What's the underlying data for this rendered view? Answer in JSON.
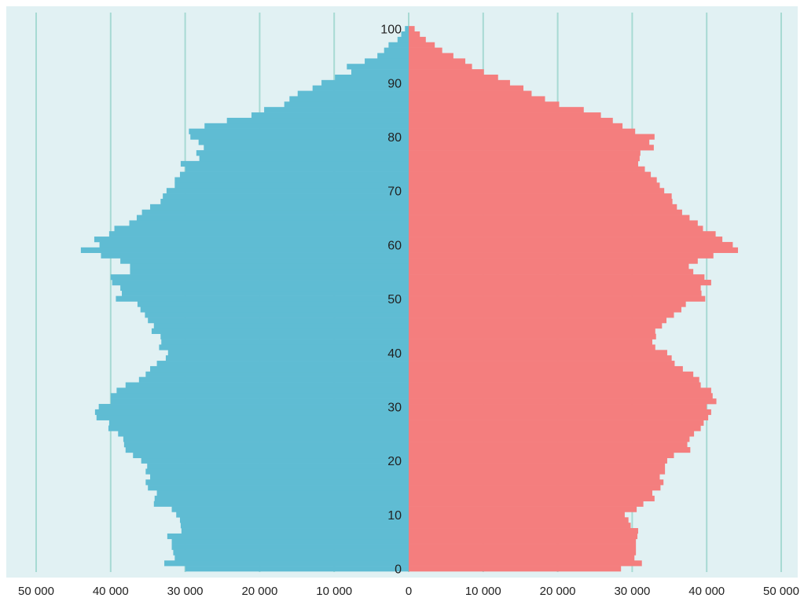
{
  "colors": {
    "plot_background": "#e1f1f3",
    "gridline": "#a7dad3",
    "male_bar": "#5fbcd3",
    "female_bar": "#f47e7e"
  },
  "chart_data": {
    "type": "bar",
    "orientation": "horizontal-population-pyramid",
    "title": "",
    "xlabel": "",
    "ylabel": "",
    "grid": true,
    "legend": "none",
    "xlim": [
      -50000,
      50000
    ],
    "ylim": [
      0,
      100
    ],
    "x_tick_values": [
      -50000,
      -40000,
      -30000,
      -20000,
      -10000,
      0,
      10000,
      20000,
      30000,
      40000,
      50000
    ],
    "x_tick_labels": [
      "50 000",
      "40 000",
      "30 000",
      "20 000",
      "10 000",
      "0",
      "10 000",
      "20 000",
      "30 000",
      "40 000",
      "50 000"
    ],
    "y_tick_values": [
      0,
      10,
      20,
      30,
      40,
      50,
      60,
      70,
      80,
      90,
      100
    ],
    "y_tick_labels": [
      "0",
      "10",
      "20",
      "30",
      "40",
      "50",
      "60",
      "70",
      "80",
      "90",
      "100"
    ],
    "categories": [
      0,
      1,
      2,
      3,
      4,
      5,
      6,
      7,
      8,
      9,
      10,
      11,
      12,
      13,
      14,
      15,
      16,
      17,
      18,
      19,
      20,
      21,
      22,
      23,
      24,
      25,
      26,
      27,
      28,
      29,
      30,
      31,
      32,
      33,
      34,
      35,
      36,
      37,
      38,
      39,
      40,
      41,
      42,
      43,
      44,
      45,
      46,
      47,
      48,
      49,
      50,
      51,
      52,
      53,
      54,
      55,
      56,
      57,
      58,
      59,
      60,
      61,
      62,
      63,
      64,
      65,
      66,
      67,
      68,
      69,
      70,
      71,
      72,
      73,
      74,
      75,
      76,
      77,
      78,
      79,
      80,
      81,
      82,
      83,
      84,
      85,
      86,
      87,
      88,
      89,
      90,
      91,
      92,
      93,
      94,
      95,
      96,
      97,
      98,
      99,
      100
    ],
    "series": [
      {
        "side": "left",
        "values": [
          30000,
          32800,
          31400,
          31600,
          31800,
          31800,
          32400,
          30500,
          30600,
          30700,
          31200,
          31800,
          34200,
          34100,
          33800,
          35000,
          35300,
          34700,
          35300,
          35100,
          35900,
          37000,
          38000,
          38200,
          38300,
          39000,
          40300,
          40200,
          41900,
          42100,
          41600,
          40000,
          40000,
          39200,
          38000,
          36200,
          35300,
          34700,
          33800,
          32600,
          32300,
          33500,
          33200,
          33300,
          34500,
          34200,
          35000,
          35400,
          36000,
          36400,
          39300,
          38500,
          38700,
          39800,
          40000,
          37400,
          37400,
          38700,
          41300,
          44000,
          41500,
          42200,
          40200,
          39500,
          37500,
          36500,
          35800,
          34700,
          33300,
          33000,
          32500,
          31400,
          31400,
          30700,
          30000,
          30600,
          28100,
          28500,
          27500,
          28200,
          29300,
          29500,
          27400,
          24400,
          21100,
          19400,
          16700,
          16000,
          14900,
          12900,
          11700,
          9900,
          7700,
          8300,
          5900,
          4200,
          3300,
          2700,
          1500,
          1000,
          500
        ]
      },
      {
        "side": "right",
        "values": [
          28500,
          31300,
          30300,
          30500,
          30500,
          30500,
          30700,
          30800,
          29800,
          29500,
          29000,
          30600,
          31500,
          33000,
          32700,
          33800,
          34200,
          33700,
          34400,
          34400,
          34700,
          35600,
          37800,
          37400,
          37700,
          38300,
          39200,
          39600,
          40200,
          40600,
          40000,
          41300,
          40800,
          40600,
          39200,
          39000,
          38200,
          36800,
          35700,
          35300,
          34700,
          33100,
          32700,
          33200,
          33100,
          34000,
          34600,
          35600,
          36600,
          37200,
          39800,
          39300,
          39200,
          40600,
          39700,
          38200,
          37600,
          38800,
          40900,
          44200,
          43500,
          42100,
          41200,
          39500,
          38800,
          37700,
          36700,
          36000,
          35400,
          35300,
          34300,
          33700,
          33300,
          32500,
          31700,
          30800,
          31000,
          31100,
          32900,
          32300,
          33000,
          30400,
          28700,
          27400,
          25800,
          23500,
          20200,
          18300,
          16500,
          15400,
          13600,
          12000,
          10100,
          8500,
          7600,
          6000,
          4500,
          3500,
          2300,
          1500,
          800
        ]
      }
    ]
  }
}
